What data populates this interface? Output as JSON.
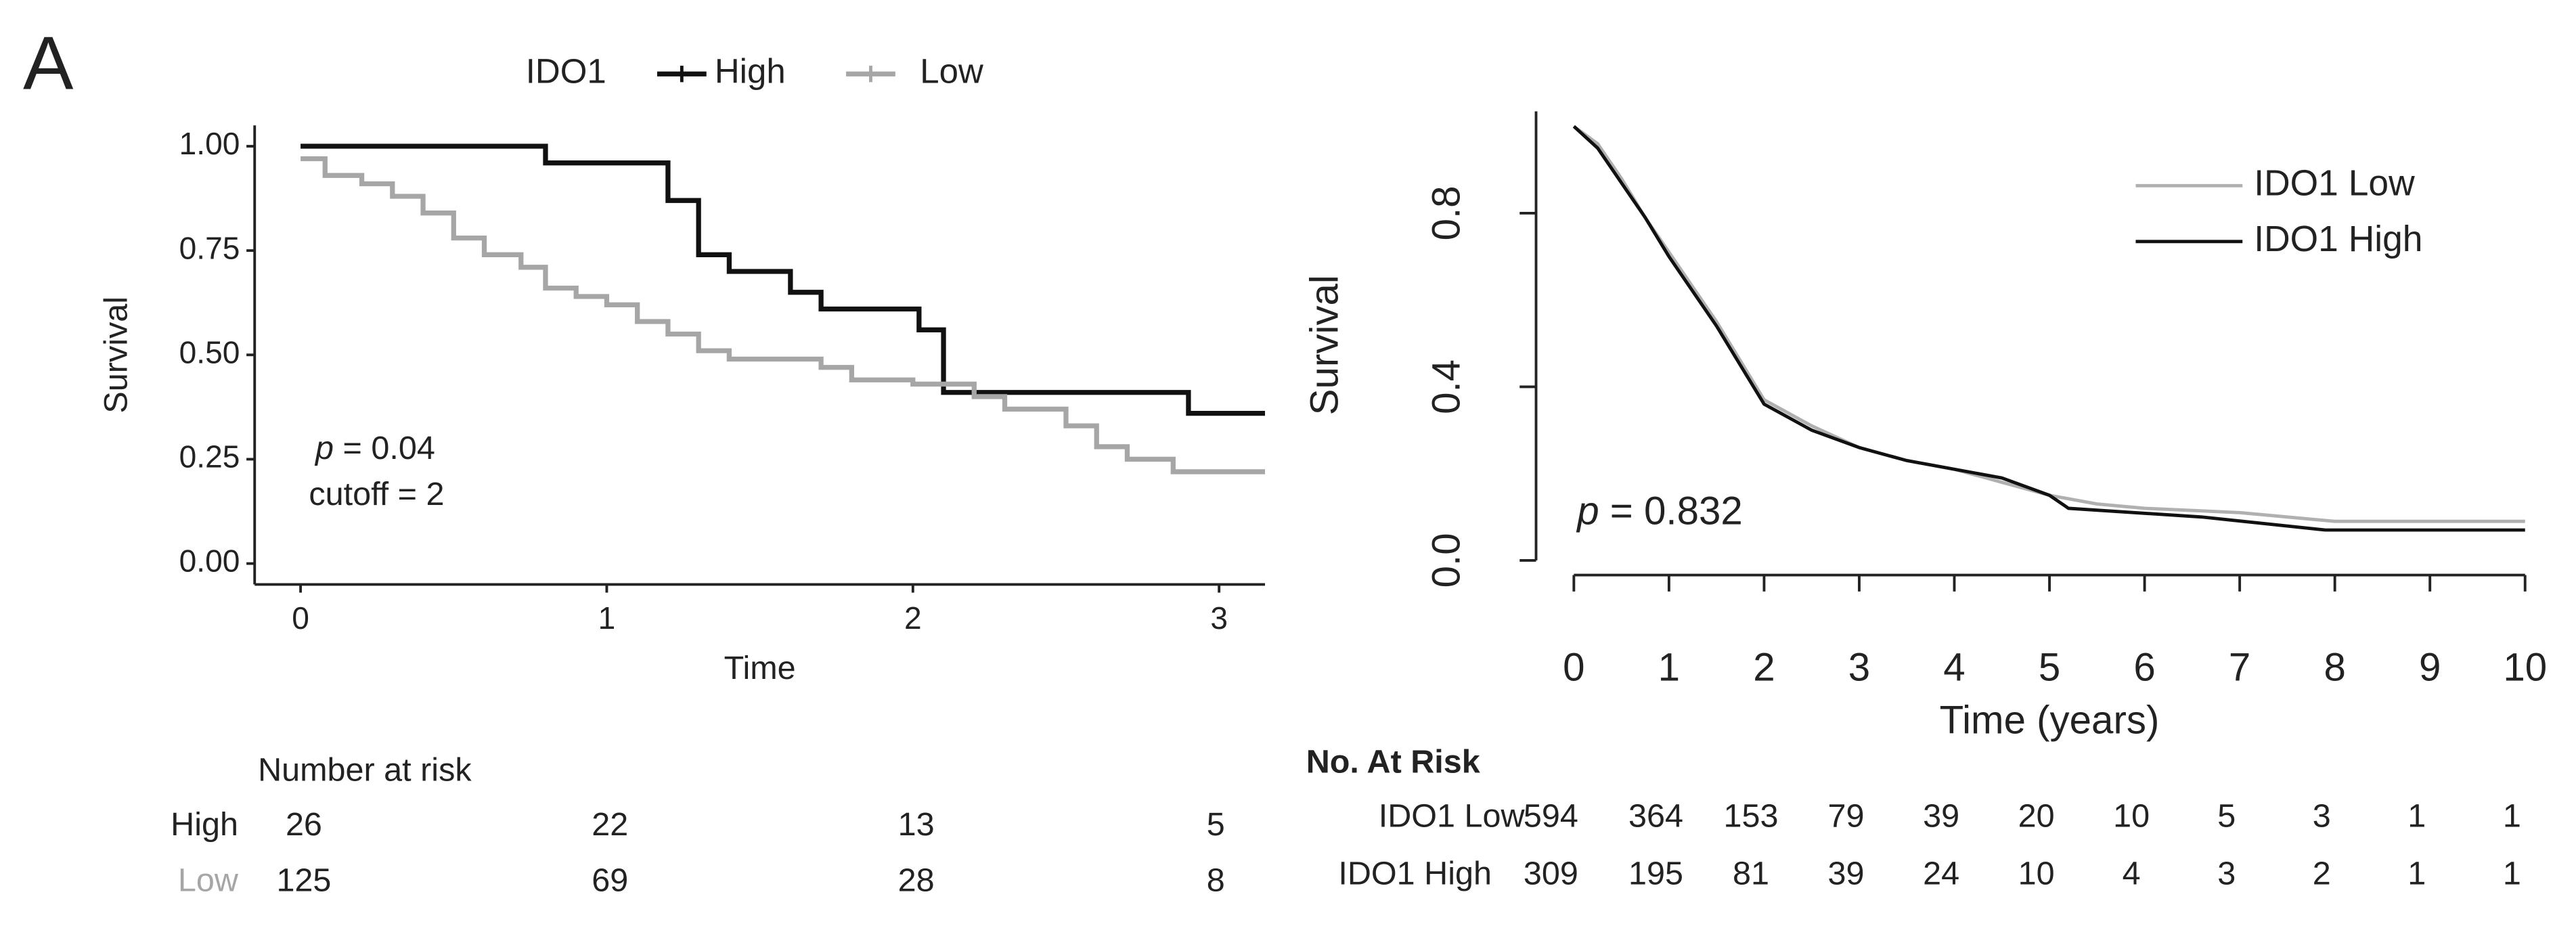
{
  "panel_label": "A",
  "chart_data": [
    {
      "type": "step",
      "x_label": "Time",
      "y_label": "Survival",
      "legend_title": "IDO1",
      "annotations": [
        "p = 0.04",
        "cutoff = 2"
      ],
      "xlim": [
        -0.15,
        3.15
      ],
      "xticks": [
        0,
        1,
        2,
        3
      ],
      "ylim": [
        -0.05,
        1.05
      ],
      "yticks": [
        {
          "value": 0,
          "label": "0.00"
        },
        {
          "value": 0.25,
          "label": "0.25"
        },
        {
          "value": 0.5,
          "label": "0.50"
        },
        {
          "value": 0.75,
          "label": "0.75"
        },
        {
          "value": 1,
          "label": "1.00"
        }
      ],
      "series": [
        {
          "name": "High",
          "color": "#111111",
          "x": [
            0,
            0.8,
            1.2,
            1.3,
            1.4,
            1.6,
            1.7,
            2.02,
            2.1,
            2.9,
            3.15
          ],
          "values": [
            1,
            0.96,
            0.87,
            0.74,
            0.7,
            0.65,
            0.61,
            0.56,
            0.41,
            0.36,
            0.36
          ]
        },
        {
          "name": "Low",
          "color": "#a6a6a6",
          "x": [
            0,
            0.08,
            0.2,
            0.3,
            0.4,
            0.5,
            0.6,
            0.72,
            0.8,
            0.9,
            1.0,
            1.1,
            1.2,
            1.3,
            1.4,
            1.7,
            1.8,
            2.0,
            2.2,
            2.3,
            2.5,
            2.6,
            2.7,
            2.85,
            3.15
          ],
          "values": [
            0.97,
            0.93,
            0.91,
            0.88,
            0.84,
            0.78,
            0.74,
            0.71,
            0.66,
            0.64,
            0.62,
            0.58,
            0.55,
            0.51,
            0.49,
            0.47,
            0.44,
            0.43,
            0.4,
            0.37,
            0.33,
            0.28,
            0.25,
            0.22,
            0.22
          ]
        }
      ],
      "risk_table": {
        "title": "Number at risk",
        "rows": [
          {
            "label": "High",
            "values": [
              26,
              22,
              13,
              5
            ]
          },
          {
            "label": "Low",
            "values": [
              125,
              69,
              28,
              8
            ]
          }
        ]
      }
    },
    {
      "type": "line",
      "x_label": "Time (years)",
      "y_label": "Survival",
      "annotations": [
        "p = 0.832"
      ],
      "xlim": [
        0,
        10
      ],
      "xticks": [
        0,
        1,
        2,
        3,
        4,
        5,
        6,
        7,
        8,
        9,
        10
      ],
      "ylim": [
        -0.03,
        1.03
      ],
      "yticks": [
        {
          "value": 0,
          "label": "0.0"
        },
        {
          "value": 0.4,
          "label": "0.4"
        },
        {
          "value": 0.8,
          "label": "0.8"
        }
      ],
      "series": [
        {
          "name": "IDO1 Low",
          "color": "#b0b0b0",
          "x": [
            0,
            0.25,
            0.5,
            0.75,
            1,
            1.25,
            1.5,
            1.75,
            2,
            2.5,
            3,
            3.5,
            4,
            4.5,
            5,
            5.5,
            6,
            7,
            8,
            10
          ],
          "values": [
            1,
            0.96,
            0.88,
            0.79,
            0.71,
            0.63,
            0.55,
            0.46,
            0.37,
            0.31,
            0.26,
            0.23,
            0.21,
            0.18,
            0.15,
            0.13,
            0.12,
            0.11,
            0.09,
            0.09
          ]
        },
        {
          "name": "IDO1 High",
          "color": "#111111",
          "x": [
            0,
            0.25,
            0.5,
            0.75,
            1,
            1.25,
            1.5,
            1.75,
            2,
            2.5,
            3,
            3.5,
            4,
            4.5,
            5,
            5.2,
            6.6,
            7.9,
            10
          ],
          "values": [
            1,
            0.95,
            0.87,
            0.79,
            0.7,
            0.62,
            0.54,
            0.45,
            0.36,
            0.3,
            0.26,
            0.23,
            0.21,
            0.19,
            0.15,
            0.12,
            0.1,
            0.07,
            0.07
          ]
        }
      ],
      "risk_table": {
        "title": "No. At Risk",
        "rows": [
          {
            "label": "IDO1 Low",
            "values": [
              594,
              364,
              153,
              79,
              39,
              20,
              10,
              5,
              3,
              1,
              1
            ]
          },
          {
            "label": "IDO1 High",
            "values": [
              309,
              195,
              81,
              39,
              24,
              10,
              4,
              3,
              2,
              1,
              1
            ]
          }
        ]
      }
    }
  ]
}
